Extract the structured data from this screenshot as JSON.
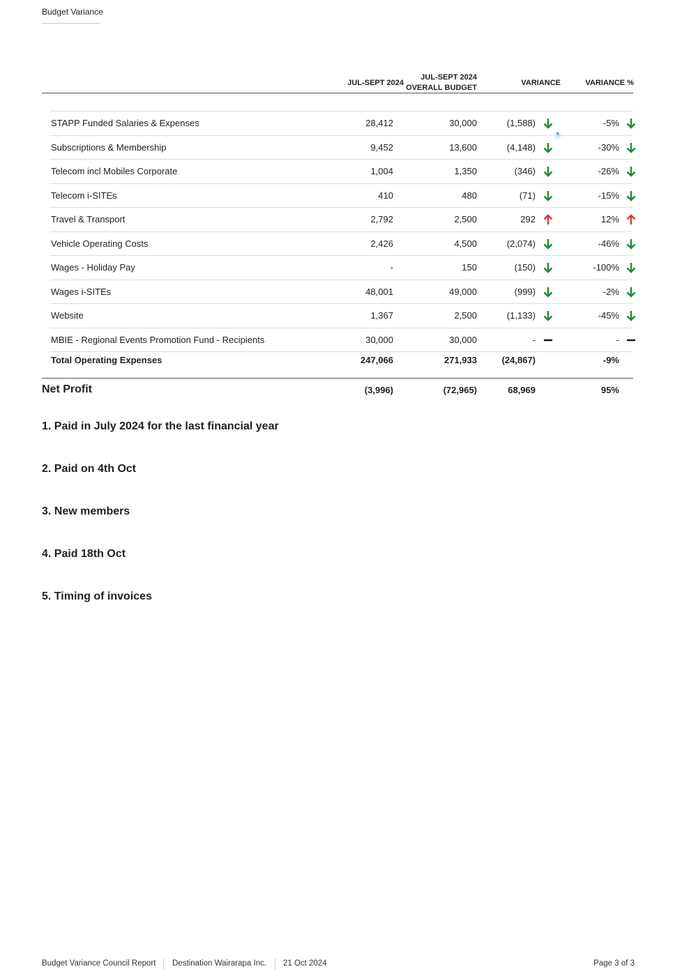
{
  "header": {
    "title": "Budget Variance"
  },
  "table": {
    "columns": [
      "JUL-SEPT 2024",
      "JUL-SEPT 2024 OVERALL BUDGET",
      "VARIANCE",
      "VARIANCE %"
    ],
    "rows": [
      {
        "label": "STAPP Funded Salaries & Expenses",
        "actual": "28,412",
        "budget": "30,000",
        "variance": "(1,588)",
        "variance_pct": "-5%",
        "trend": "down"
      },
      {
        "label": "Subscriptions & Membership",
        "actual": "9,452",
        "budget": "13,600",
        "variance": "(4,148)",
        "variance_pct": "-30%",
        "trend": "down"
      },
      {
        "label": "Telecom incl Mobiles Corporate",
        "actual": "1,004",
        "budget": "1,350",
        "variance": "(346)",
        "variance_pct": "-26%",
        "trend": "down"
      },
      {
        "label": "Telecom i-SITEs",
        "actual": "410",
        "budget": "480",
        "variance": "(71)",
        "variance_pct": "-15%",
        "trend": "down"
      },
      {
        "label": "Travel & Transport",
        "actual": "2,792",
        "budget": "2,500",
        "variance": "292",
        "variance_pct": "12%",
        "trend": "up"
      },
      {
        "label": "Vehicle Operating Costs",
        "actual": "2,426",
        "budget": "4,500",
        "variance": "(2,074)",
        "variance_pct": "-46%",
        "trend": "down"
      },
      {
        "label": "Wages - Holiday Pay",
        "actual": "-",
        "budget": "150",
        "variance": "(150)",
        "variance_pct": "-100%",
        "trend": "down"
      },
      {
        "label": "Wages i-SITEs",
        "actual": "48,001",
        "budget": "49,000",
        "variance": "(999)",
        "variance_pct": "-2%",
        "trend": "down"
      },
      {
        "label": "Website",
        "actual": "1,367",
        "budget": "2,500",
        "variance": "(1,133)",
        "variance_pct": "-45%",
        "trend": "down"
      },
      {
        "label": "MBIE - Regional Events Promotion Fund - Recipients",
        "actual": "30,000",
        "budget": "30,000",
        "variance": "-",
        "variance_pct": "-",
        "trend": "flat"
      }
    ],
    "total": {
      "label": "Total Operating Expenses",
      "actual": "247,066",
      "budget": "271,933",
      "variance": "(24,867)",
      "variance_pct": "-9%"
    },
    "net_profit": {
      "label": "Net Profit",
      "actual": "(3,996)",
      "budget": "(72,965)",
      "variance": "68,969",
      "variance_pct": "95%"
    },
    "marker": "5"
  },
  "notes": [
    "1. Paid in July 2024 for the last financial year",
    "2. Paid on 4th Oct",
    "3. New members",
    "4. Paid 18th Oct",
    "5. Timing of invoices"
  ],
  "footer": {
    "report": "Budget Variance Council Report",
    "organisation": "Destination Wairarapa Inc.",
    "date": "21 Oct 2024",
    "page": "Page 3 of 3"
  }
}
